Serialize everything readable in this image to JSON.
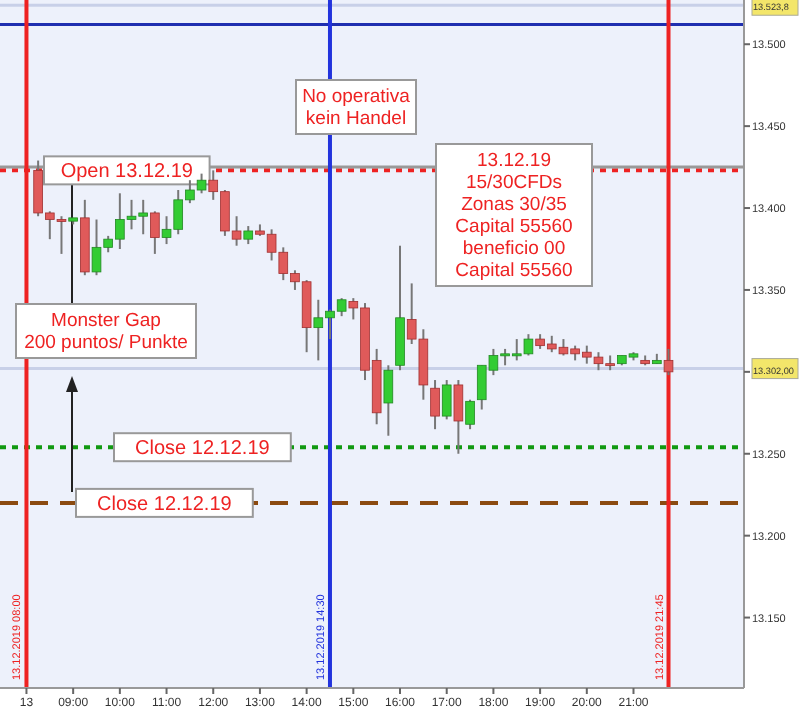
{
  "chart_data": {
    "type": "candlestick",
    "x": [
      "2019-12-13T08:15",
      "2019-12-13T08:30",
      "2019-12-13T08:45",
      "2019-12-13T09:00",
      "2019-12-13T09:15",
      "2019-12-13T09:30",
      "2019-12-13T09:45",
      "2019-12-13T10:00",
      "2019-12-13T10:15",
      "2019-12-13T10:30",
      "2019-12-13T10:45",
      "2019-12-13T11:00",
      "2019-12-13T11:15",
      "2019-12-13T11:30",
      "2019-12-13T11:45",
      "2019-12-13T12:00",
      "2019-12-13T12:15",
      "2019-12-13T12:30",
      "2019-12-13T12:45",
      "2019-12-13T13:00",
      "2019-12-13T13:15",
      "2019-12-13T13:30",
      "2019-12-13T13:45",
      "2019-12-13T14:00",
      "2019-12-13T14:15",
      "2019-12-13T14:30",
      "2019-12-13T14:45",
      "2019-12-13T15:00",
      "2019-12-13T15:15",
      "2019-12-13T15:30",
      "2019-12-13T15:45",
      "2019-12-13T16:00",
      "2019-12-13T16:15",
      "2019-12-13T16:30",
      "2019-12-13T16:45",
      "2019-12-13T17:00",
      "2019-12-13T17:15",
      "2019-12-13T17:30",
      "2019-12-13T17:45",
      "2019-12-13T18:00",
      "2019-12-13T18:15",
      "2019-12-13T18:30",
      "2019-12-13T18:45",
      "2019-12-13T19:00",
      "2019-12-13T19:15",
      "2019-12-13T19:30",
      "2019-12-13T19:45",
      "2019-12-13T20:00",
      "2019-12-13T20:15",
      "2019-12-13T20:30",
      "2019-12-13T20:45",
      "2019-12-13T21:00",
      "2019-12-13T21:15",
      "2019-12-13T21:30",
      "2019-12-13T21:45"
    ],
    "ohlc": [
      [
        13423,
        13429,
        13395,
        13397
      ],
      [
        13397,
        13398,
        13381,
        13393
      ],
      [
        13393,
        13395,
        13372,
        13392
      ],
      [
        13392,
        13394,
        13390,
        13394
      ],
      [
        13394,
        13405,
        13359,
        13361
      ],
      [
        13361,
        13393,
        13359,
        13376
      ],
      [
        13376,
        13383,
        13373,
        13381
      ],
      [
        13381,
        13409,
        13375,
        13393
      ],
      [
        13393,
        13405,
        13387,
        13395
      ],
      [
        13395,
        13405,
        13384,
        13397
      ],
      [
        13397,
        13398,
        13372,
        13382
      ],
      [
        13382,
        13395,
        13378,
        13387
      ],
      [
        13387,
        13411,
        13384,
        13405
      ],
      [
        13405,
        13417,
        13403,
        13411
      ],
      [
        13411,
        13421,
        13409,
        13417
      ],
      [
        13417,
        13423,
        13405,
        13410
      ],
      [
        13410,
        13411,
        13383,
        13386
      ],
      [
        13386,
        13395,
        13377,
        13381
      ],
      [
        13381,
        13389,
        13378,
        13386
      ],
      [
        13386,
        13390,
        13383,
        13384
      ],
      [
        13384,
        13387,
        13368,
        13373
      ],
      [
        13373,
        13376,
        13356,
        13360
      ],
      [
        13360,
        13362,
        13350,
        13355
      ],
      [
        13355,
        13356,
        13312,
        13327
      ],
      [
        13327,
        13344,
        13307,
        13333
      ],
      [
        13333,
        13338,
        13320,
        13337
      ],
      [
        13337,
        13345,
        13334,
        13344
      ],
      [
        13343,
        13345,
        13332,
        13339
      ],
      [
        13339,
        13342,
        13295,
        13301
      ],
      [
        13307,
        13314,
        13268,
        13275
      ],
      [
        13281,
        13304,
        13261,
        13301
      ],
      [
        13304,
        13377,
        13301,
        13333
      ],
      [
        13332,
        13354,
        13317,
        13320
      ],
      [
        13320,
        13326,
        13283,
        13292
      ],
      [
        13290,
        13295,
        13265,
        13273
      ],
      [
        13273,
        13295,
        13271,
        13292
      ],
      [
        13292,
        13295,
        13250,
        13270
      ],
      [
        13268,
        13283,
        13265,
        13282
      ],
      [
        13283,
        13304,
        13277,
        13304
      ],
      [
        13301,
        13314,
        13298,
        13310
      ],
      [
        13310,
        13314,
        13304,
        13311
      ],
      [
        13310,
        13320,
        13307,
        13311
      ],
      [
        13311,
        13323,
        13310,
        13320
      ],
      [
        13320,
        13323,
        13314,
        13316
      ],
      [
        13317,
        13322,
        13312,
        13314
      ],
      [
        13315,
        13320,
        13310,
        13311
      ],
      [
        13314,
        13316,
        13307,
        13311
      ],
      [
        13312,
        13316,
        13305,
        13309
      ],
      [
        13309,
        13312,
        13301,
        13305
      ],
      [
        13305,
        13310,
        13301,
        13304
      ],
      [
        13305,
        13310,
        13304,
        13310
      ],
      [
        13309,
        13312,
        13307,
        13311
      ],
      [
        13307,
        13310,
        13304,
        13305
      ],
      [
        13305,
        13311,
        13305,
        13307
      ],
      [
        13307,
        13314,
        13298,
        13300
      ]
    ],
    "xlim": [
      "2019-12-13T07:26",
      "2019-12-13T23:22"
    ],
    "xticks": [
      {
        "value": "2019-12-13T08:00",
        "label": "13"
      },
      {
        "value": "2019-12-13T09:00",
        "label": "09:00"
      },
      {
        "value": "2019-12-13T10:00",
        "label": "10:00"
      },
      {
        "value": "2019-12-13T11:00",
        "label": "11:00"
      },
      {
        "value": "2019-12-13T12:00",
        "label": "12:00"
      },
      {
        "value": "2019-12-13T13:00",
        "label": "13:00"
      },
      {
        "value": "2019-12-13T14:00",
        "label": "14:00"
      },
      {
        "value": "2019-12-13T15:00",
        "label": "15:00"
      },
      {
        "value": "2019-12-13T16:00",
        "label": "16:00"
      },
      {
        "value": "2019-12-13T17:00",
        "label": "17:00"
      },
      {
        "value": "2019-12-13T18:00",
        "label": "18:00"
      },
      {
        "value": "2019-12-13T19:00",
        "label": "19:00"
      },
      {
        "value": "2019-12-13T20:00",
        "label": "20:00"
      },
      {
        "value": "2019-12-13T21:00",
        "label": "21:00"
      }
    ],
    "ylim": [
      13107,
      13527
    ],
    "yticks": [
      {
        "value": 13150,
        "label": "13.150"
      },
      {
        "value": 13200,
        "label": "13.200"
      },
      {
        "value": 13250,
        "label": "13.250"
      },
      {
        "value": 13300,
        "label": null
      },
      {
        "value": 13350,
        "label": "13.350"
      },
      {
        "value": 13400,
        "label": "13.400"
      },
      {
        "value": 13450,
        "label": "13.450"
      },
      {
        "value": 13500,
        "label": "13.500"
      }
    ],
    "ref_lines": [
      {
        "axis": "y",
        "value": 13423,
        "label": "Open 13.12.19",
        "color": "#ee2222",
        "line_style": "dotted"
      },
      {
        "axis": "y",
        "value": 13254,
        "label": "Close 12.12.19",
        "color": "#119911",
        "line_style": "dotted"
      },
      {
        "axis": "y",
        "value": 13220,
        "label": "Close 12.12.19",
        "color": "#8b4a10",
        "line_style": "dashed"
      },
      {
        "axis": "y",
        "value": 13512,
        "color": "#1f2fb0",
        "line_style": "solid"
      },
      {
        "axis": "y",
        "value": 13425,
        "color": "#999999",
        "line_style": "solid"
      },
      {
        "axis": "y",
        "value": 13523.8,
        "label": "13.523,8",
        "color": "#c8d0e8",
        "line_style": "solid"
      },
      {
        "axis": "y",
        "value": 13302,
        "label": "13.302,00",
        "color": "#c8d0e8",
        "line_style": "solid"
      },
      {
        "axis": "x",
        "value": "2019-12-13T08:00",
        "label": "13.12.2019 08:00",
        "color": "#ee2222",
        "line_style": "solid"
      },
      {
        "axis": "x",
        "value": "2019-12-13T14:30",
        "label": "13.12.2019 14:30",
        "color": "#2233dd",
        "line_style": "solid"
      },
      {
        "axis": "x",
        "value": "2019-12-13T21:45",
        "label": "13.12.2019 21:45",
        "color": "#ee2222",
        "line_style": "solid"
      }
    ],
    "annotations": [
      "No operativa\nkein Handel",
      "Monster Gap\n200 puntos/ Punkte",
      "13.12.19\n15/30CFDs\nZonas 30/35\nCapital 55560\nbeneficio 00\nCapital 55560"
    ]
  }
}
